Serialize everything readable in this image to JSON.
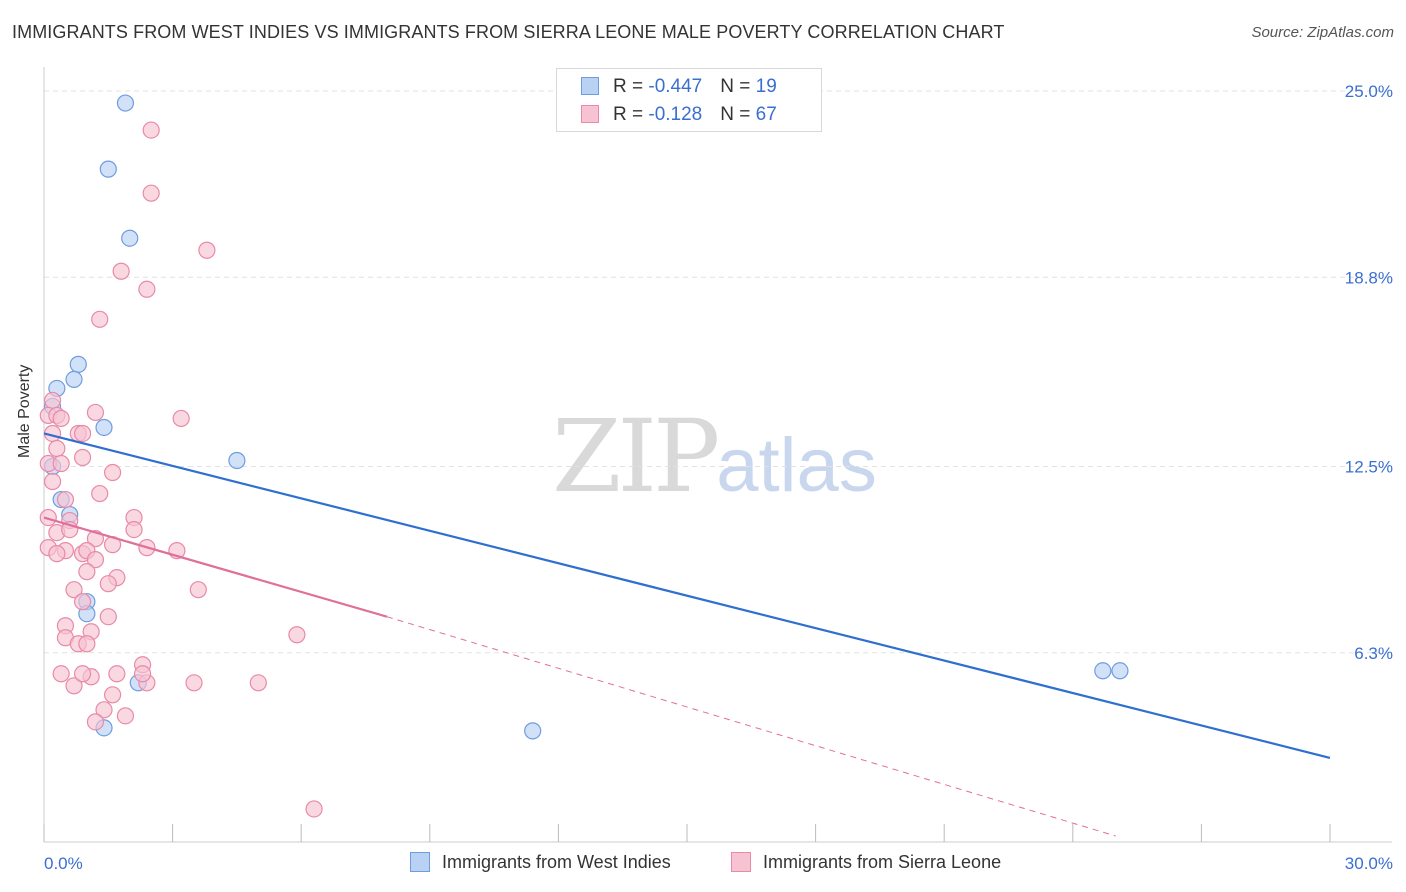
{
  "header": {
    "title": "IMMIGRANTS FROM WEST INDIES VS IMMIGRANTS FROM SIERRA LEONE MALE POVERTY CORRELATION CHART",
    "source": "Source: ZipAtlas.com"
  },
  "watermark": {
    "zip": "ZIP",
    "atlas": "atlas"
  },
  "legend": {
    "series1": {
      "r_label": "R = ",
      "r_value": "-0.447",
      "n_label": "N = ",
      "n_value": "19"
    },
    "series2": {
      "r_label": "R = ",
      "r_value": "-0.128",
      "n_label": "N = ",
      "n_value": "67"
    }
  },
  "colors": {
    "blue_fill": "#b9d1f3",
    "blue_stroke": "#6f9ce0",
    "blue_line": "#2f6fd0",
    "pink_fill": "#f7c3d3",
    "pink_stroke": "#e88aa8",
    "pink_line": "#e0709a",
    "grid": "#e2e2e2",
    "tick_text": "#3a6fd0"
  },
  "chart_data": {
    "type": "scatter",
    "title": "IMMIGRANTS FROM WEST INDIES VS IMMIGRANTS FROM SIERRA LEONE MALE POVERTY CORRELATION CHART",
    "xlabel": "",
    "ylabel": "Male Poverty",
    "xlim": [
      0,
      30
    ],
    "ylim": [
      0,
      25.8
    ],
    "x_tick_labels": [
      "0.0%",
      "30.0%"
    ],
    "y_ticks": [
      6.3,
      12.5,
      18.8,
      25.0
    ],
    "y_tick_labels": [
      "6.3%",
      "12.5%",
      "18.8%",
      "25.0%"
    ],
    "grid": true,
    "series": [
      {
        "name": "Immigrants from West Indies",
        "color": "blue",
        "trend": {
          "x": [
            0,
            30
          ],
          "y": [
            13.6,
            2.8
          ],
          "style": "solid"
        },
        "points": [
          {
            "x": 1.9,
            "y": 24.6
          },
          {
            "x": 1.5,
            "y": 22.4
          },
          {
            "x": 2.0,
            "y": 20.1
          },
          {
            "x": 0.8,
            "y": 15.9
          },
          {
            "x": 0.3,
            "y": 15.1
          },
          {
            "x": 0.7,
            "y": 15.4
          },
          {
            "x": 0.2,
            "y": 14.5
          },
          {
            "x": 1.4,
            "y": 13.8
          },
          {
            "x": 4.5,
            "y": 12.7
          },
          {
            "x": 0.2,
            "y": 12.5
          },
          {
            "x": 0.4,
            "y": 11.4
          },
          {
            "x": 0.6,
            "y": 10.9
          },
          {
            "x": 1.0,
            "y": 8.0
          },
          {
            "x": 1.0,
            "y": 7.6
          },
          {
            "x": 2.2,
            "y": 5.3
          },
          {
            "x": 1.4,
            "y": 3.8
          },
          {
            "x": 11.4,
            "y": 3.7
          },
          {
            "x": 24.7,
            "y": 5.7
          },
          {
            "x": 25.1,
            "y": 5.7
          }
        ]
      },
      {
        "name": "Immigrants from Sierra Leone",
        "color": "pink",
        "trend": {
          "x": [
            0,
            8.0
          ],
          "y": [
            10.8,
            7.5
          ],
          "style": "solid",
          "extended_x": [
            8.0,
            25.0
          ],
          "extended_y": [
            7.5,
            0.2
          ],
          "extended_style": "dashed"
        },
        "points": [
          {
            "x": 2.5,
            "y": 23.7
          },
          {
            "x": 2.5,
            "y": 21.6
          },
          {
            "x": 3.8,
            "y": 19.7
          },
          {
            "x": 1.8,
            "y": 19.0
          },
          {
            "x": 2.4,
            "y": 18.4
          },
          {
            "x": 1.3,
            "y": 17.4
          },
          {
            "x": 0.2,
            "y": 14.7
          },
          {
            "x": 0.1,
            "y": 14.2
          },
          {
            "x": 0.3,
            "y": 14.2
          },
          {
            "x": 0.4,
            "y": 14.1
          },
          {
            "x": 1.2,
            "y": 14.3
          },
          {
            "x": 3.2,
            "y": 14.1
          },
          {
            "x": 0.2,
            "y": 13.6
          },
          {
            "x": 0.3,
            "y": 13.1
          },
          {
            "x": 0.8,
            "y": 13.6
          },
          {
            "x": 0.9,
            "y": 13.6
          },
          {
            "x": 0.1,
            "y": 12.6
          },
          {
            "x": 0.4,
            "y": 12.6
          },
          {
            "x": 0.9,
            "y": 12.8
          },
          {
            "x": 1.6,
            "y": 12.3
          },
          {
            "x": 0.2,
            "y": 12.0
          },
          {
            "x": 1.3,
            "y": 11.6
          },
          {
            "x": 0.5,
            "y": 11.4
          },
          {
            "x": 0.1,
            "y": 10.8
          },
          {
            "x": 0.6,
            "y": 10.7
          },
          {
            "x": 2.1,
            "y": 10.8
          },
          {
            "x": 0.3,
            "y": 10.3
          },
          {
            "x": 0.6,
            "y": 10.4
          },
          {
            "x": 2.1,
            "y": 10.4
          },
          {
            "x": 1.2,
            "y": 10.1
          },
          {
            "x": 1.6,
            "y": 9.9
          },
          {
            "x": 0.1,
            "y": 9.8
          },
          {
            "x": 0.5,
            "y": 9.7
          },
          {
            "x": 0.9,
            "y": 9.6
          },
          {
            "x": 1.0,
            "y": 9.7
          },
          {
            "x": 2.4,
            "y": 9.8
          },
          {
            "x": 3.1,
            "y": 9.7
          },
          {
            "x": 0.3,
            "y": 9.6
          },
          {
            "x": 1.2,
            "y": 9.4
          },
          {
            "x": 1.0,
            "y": 9.0
          },
          {
            "x": 1.7,
            "y": 8.8
          },
          {
            "x": 1.5,
            "y": 8.6
          },
          {
            "x": 0.7,
            "y": 8.4
          },
          {
            "x": 3.6,
            "y": 8.4
          },
          {
            "x": 0.9,
            "y": 8.0
          },
          {
            "x": 1.5,
            "y": 7.5
          },
          {
            "x": 0.5,
            "y": 7.2
          },
          {
            "x": 1.1,
            "y": 7.0
          },
          {
            "x": 0.5,
            "y": 6.8
          },
          {
            "x": 5.9,
            "y": 6.9
          },
          {
            "x": 0.8,
            "y": 6.6
          },
          {
            "x": 1.0,
            "y": 6.6
          },
          {
            "x": 2.3,
            "y": 5.9
          },
          {
            "x": 0.4,
            "y": 5.6
          },
          {
            "x": 1.1,
            "y": 5.5
          },
          {
            "x": 1.7,
            "y": 5.6
          },
          {
            "x": 0.7,
            "y": 5.2
          },
          {
            "x": 2.4,
            "y": 5.3
          },
          {
            "x": 3.5,
            "y": 5.3
          },
          {
            "x": 5.0,
            "y": 5.3
          },
          {
            "x": 1.6,
            "y": 4.9
          },
          {
            "x": 1.4,
            "y": 4.4
          },
          {
            "x": 1.2,
            "y": 4.0
          },
          {
            "x": 1.9,
            "y": 4.2
          },
          {
            "x": 6.3,
            "y": 1.1
          },
          {
            "x": 2.3,
            "y": 5.6
          },
          {
            "x": 0.9,
            "y": 5.6
          }
        ]
      }
    ],
    "legend_position": "top-center"
  },
  "bottom_legend": {
    "item1": "Immigrants from West Indies",
    "item2": "Immigrants from Sierra Leone"
  }
}
